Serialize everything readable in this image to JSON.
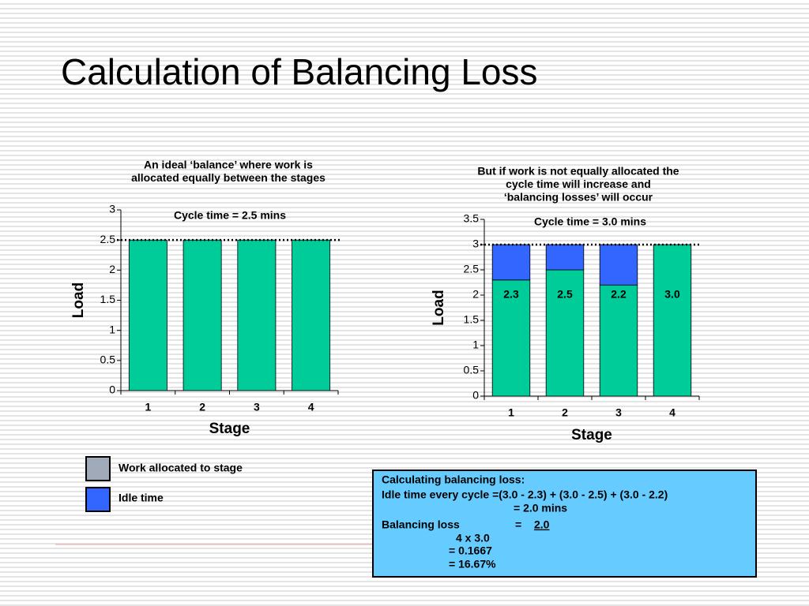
{
  "title": "Calculation of Balancing Loss",
  "chart_data": [
    {
      "type": "bar",
      "title": [
        "An ideal ‘balance’ where work is",
        "allocated equally between the stages"
      ],
      "annotation": "Cycle time = 2.5 mins",
      "cycle_time": 2.5,
      "categories": [
        "1",
        "2",
        "3",
        "4"
      ],
      "values": [
        2.5,
        2.5,
        2.5,
        2.5
      ],
      "color": "#00cc99",
      "xlabel": "Stage",
      "ylabel": "Load",
      "ylim": [
        0,
        3
      ],
      "yticks": [
        0,
        0.5,
        1,
        1.5,
        2,
        2.5,
        3
      ]
    },
    {
      "type": "stacked_bar",
      "title": [
        "But if work is not equally allocated the",
        "cycle time will increase and",
        "‘balancing losses’ will occur"
      ],
      "annotation": "Cycle time = 3.0 mins",
      "cycle_time": 3.0,
      "categories": [
        "1",
        "2",
        "3",
        "4"
      ],
      "series": [
        {
          "name": "Work allocated to stage",
          "color": "#00cc99",
          "legend_color": "#a0aab8",
          "values": [
            2.3,
            2.5,
            2.2,
            3.0
          ],
          "value_labels": [
            "2.3",
            "2.5",
            "2.2",
            "3.0"
          ]
        },
        {
          "name": "Idle time",
          "color": "#3366ff",
          "legend_color": "#3366ff",
          "values": [
            0.7,
            0.5,
            0.8,
            0
          ]
        }
      ],
      "xlabel": "Stage",
      "ylabel": "Load",
      "ylim": [
        0,
        3.5
      ],
      "yticks": [
        0,
        0.5,
        1,
        1.5,
        2,
        2.5,
        3,
        3.5
      ]
    }
  ],
  "calculation": {
    "heading": "Calculating balancing loss:",
    "idle_label": "Idle time every cycle =(3.0 - 2.3) + (3.0 - 2.5) + (3.0 - 2.2)",
    "idle_result": "= 2.0 mins",
    "loss_label": "Balancing loss",
    "loss_eq": "=",
    "numerator": "2.0",
    "denominator": "4 x 3.0",
    "ratio": "=  0.1667",
    "percent": "= 16.67%"
  }
}
